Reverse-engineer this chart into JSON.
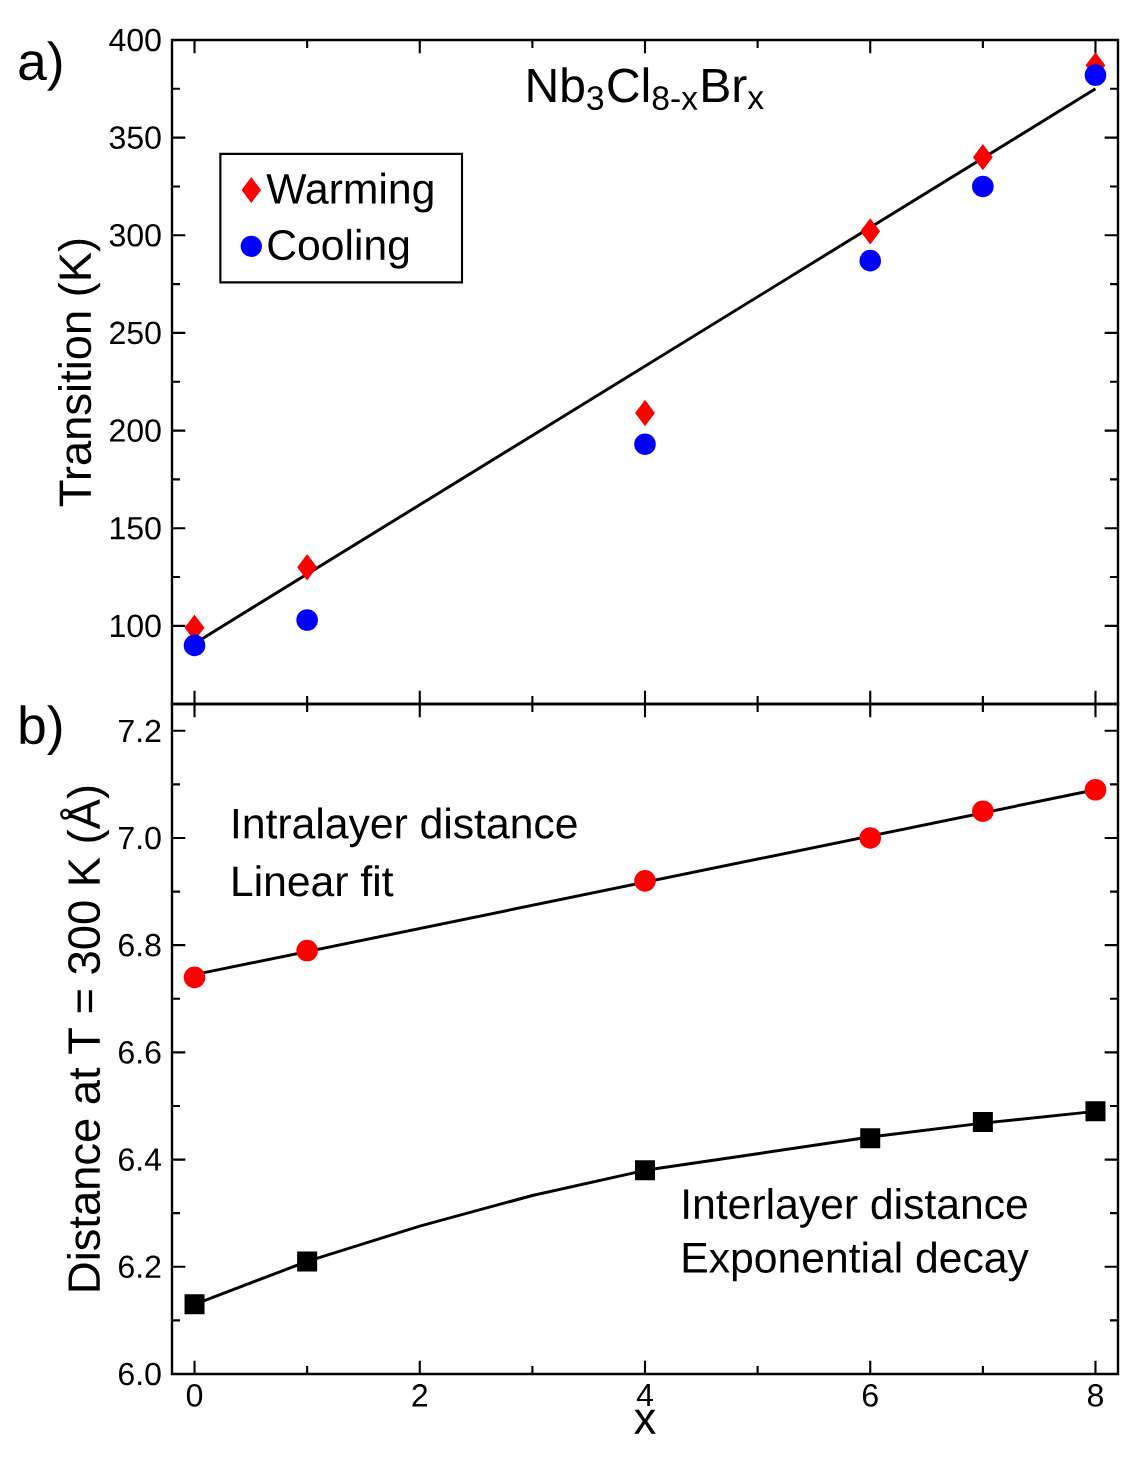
{
  "chart_data": [
    {
      "type": "scatter",
      "title": "Nb$_{3}$Cl$_{8-x}$Br$_{x}$",
      "ylabel": "Transition (K)",
      "annotations": [
        "a)"
      ],
      "x": [
        0,
        1,
        4,
        6,
        7,
        8
      ],
      "xlim": [
        -0.2,
        8.2
      ],
      "xticks": [
        0,
        2,
        4,
        6,
        8
      ],
      "ylim": [
        60,
        400
      ],
      "yticks": [
        100,
        150,
        200,
        250,
        300,
        350,
        400
      ],
      "tick_labels": "y",
      "legend": "top left",
      "grid": false,
      "series": [
        {
          "name": "Warming",
          "color": "#ff0000",
          "marker": "diamond",
          "values": [
            99,
            130,
            209,
            302,
            340,
            387
          ]
        },
        {
          "name": "Cooling",
          "color": "#0000ff",
          "marker": "circle",
          "values": [
            90,
            103,
            193,
            287,
            325,
            382
          ]
        },
        {
          "type": "line",
          "color": "#000000",
          "x": [
            0,
            8
          ],
          "values": [
            91,
            375
          ]
        }
      ]
    },
    {
      "type": "scatter",
      "xlabel": "x",
      "ylabel": "Distance at T = 300 K (Å)",
      "annotations": [
        "b)",
        "Intralayer distance",
        "Linear fit",
        "Interlayer distance",
        "Exponential decay"
      ],
      "x": [
        0,
        1,
        4,
        6,
        7,
        8
      ],
      "xlim": [
        -0.2,
        8.2
      ],
      "xticks": [
        0,
        2,
        4,
        6,
        8
      ],
      "ylim": [
        6.0,
        7.25
      ],
      "yticks": [
        {
          "value": 6.0,
          "label": "6.0"
        },
        6.2,
        6.4,
        6.6,
        6.8,
        {
          "value": 7.0,
          "label": "7.0"
        },
        7.2
      ],
      "grid": false,
      "series": [
        {
          "color": "#ff0000",
          "marker": "circle",
          "values": [
            6.74,
            6.79,
            6.92,
            7.0,
            7.05,
            7.09
          ]
        },
        {
          "color": "#000000",
          "marker": "square",
          "values": [
            6.13,
            6.21,
            6.38,
            6.44,
            6.47,
            6.49
          ]
        },
        {
          "type": "line",
          "color": "#000000",
          "x": [
            0,
            8
          ],
          "values": [
            6.745,
            7.09
          ]
        },
        {
          "type": "line",
          "color": "#000000",
          "x": [
            0,
            1,
            2,
            3,
            4,
            5,
            6,
            7,
            8
          ],
          "values": [
            6.13,
            6.21,
            6.276,
            6.333,
            6.38,
            6.411,
            6.442,
            6.468,
            6.49
          ]
        }
      ]
    }
  ]
}
